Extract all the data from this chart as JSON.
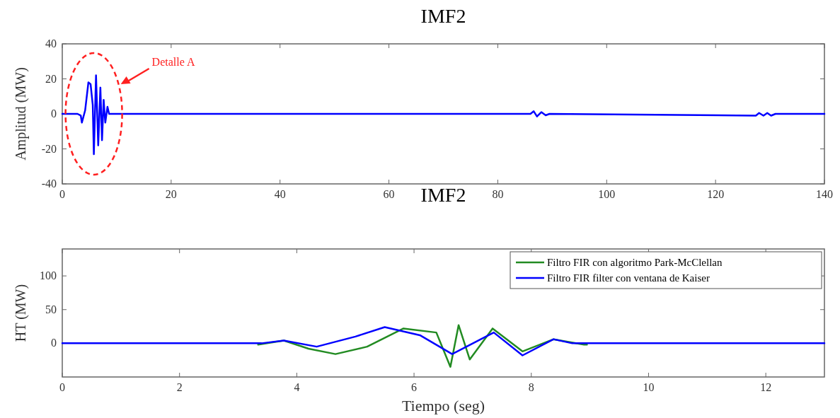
{
  "chart_data": [
    {
      "type": "line",
      "title": "IMF2",
      "ylabel": "Amplitud (MW)",
      "xlim": [
        0,
        140
      ],
      "ylim": [
        -40,
        40
      ],
      "xticks": [
        0,
        20,
        40,
        60,
        80,
        100,
        120,
        140
      ],
      "yticks": [
        -40,
        -20,
        0,
        20,
        40
      ],
      "grid": false,
      "legend": false,
      "annotations": [
        "Detalle A"
      ],
      "series": [
        {
          "color": "#0000ff",
          "x": [
            0,
            2.8,
            3.4,
            3.6,
            4.2,
            4.8,
            5.2,
            5.6,
            5.8,
            6.2,
            6.6,
            7.0,
            7.3,
            7.6,
            7.9,
            8.3,
            8.6,
            86,
            86.6,
            87.2,
            88,
            88.8,
            89.5,
            127.4,
            128,
            128.8,
            129.5,
            130.2,
            131,
            140
          ],
          "values": [
            0,
            0,
            -1,
            -5,
            2,
            18,
            17,
            5,
            -23,
            22,
            -18,
            15,
            -15,
            8,
            -5,
            4,
            0,
            0,
            1.5,
            -1.5,
            1,
            -0.8,
            0,
            -1,
            0.5,
            -1,
            0.5,
            -1,
            0,
            0
          ]
        }
      ]
    },
    {
      "type": "line",
      "title": "IMF2",
      "xlabel": "Tiempo (seg)",
      "ylabel": "HT (MW)",
      "xlim": [
        0,
        13
      ],
      "ylim": [
        -50,
        140
      ],
      "xticks": [
        0,
        2,
        4,
        6,
        8,
        10,
        12
      ],
      "yticks": [
        0,
        50,
        100
      ],
      "grid": false,
      "legend": "top right",
      "series": [
        {
          "name": "Filtro FIR con algoritmo Park-McClellan",
          "color": "#228b22",
          "x": [
            3.34,
            3.78,
            4.2,
            4.66,
            5.2,
            5.82,
            6.38,
            6.62,
            6.76,
            6.95,
            7.34,
            7.85,
            8.38,
            8.9,
            8.95
          ],
          "values": [
            -2,
            4,
            -8,
            -16,
            -5,
            22,
            16,
            -35,
            27,
            -24,
            22,
            -12,
            6,
            -2,
            -2
          ]
        },
        {
          "name": "Filtro FIR filter con ventana de Kaiser",
          "color": "#0000ff",
          "x": [
            0,
            3.4,
            3.78,
            4.34,
            5.0,
            5.5,
            6.1,
            6.65,
            7.36,
            7.85,
            8.38,
            8.7,
            13
          ],
          "values": [
            0,
            0,
            4,
            -5,
            10,
            24,
            12,
            -16,
            16,
            -18,
            6,
            0,
            0
          ]
        }
      ]
    }
  ]
}
